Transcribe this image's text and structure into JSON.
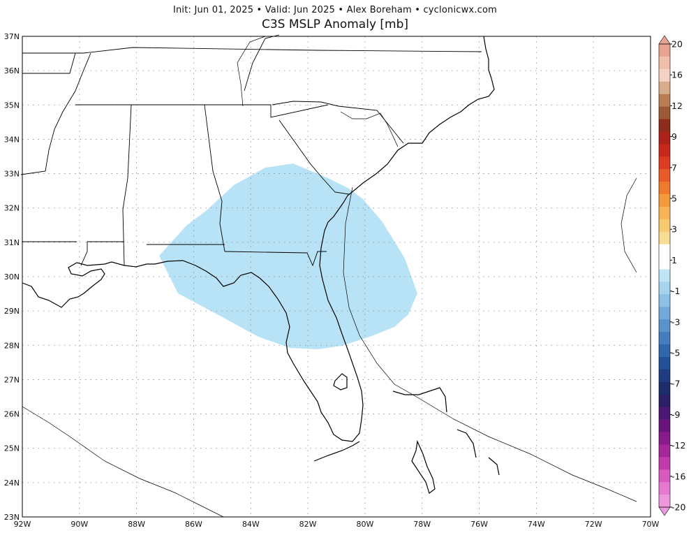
{
  "header": {
    "subtitle": "Init: Jun 01, 2025  •  Valid: Jun 2025  •  Alex Boreham  •  cyclonicwx.com",
    "title": "C3S MSLP Anomaly [mb]"
  },
  "map": {
    "lon_range": [
      -92,
      -70
    ],
    "lat_range": [
      23,
      37
    ],
    "lat_labels": [
      "37N",
      "36N",
      "35N",
      "34N",
      "33N",
      "32N",
      "31N",
      "30N",
      "29N",
      "28N",
      "27N",
      "26N",
      "25N",
      "24N",
      "23N"
    ],
    "lon_labels": [
      "92W",
      "90W",
      "88W",
      "86W",
      "84W",
      "82W",
      "80W",
      "78W",
      "76W",
      "74W",
      "72W",
      "70W"
    ],
    "anomaly_region": {
      "value_mb": -1,
      "color": "#b8e2f5"
    }
  },
  "colorbar": {
    "labels": [
      "20",
      "16",
      "12",
      "9",
      "7",
      "5",
      "3",
      "1",
      "-1",
      "-3",
      "-5",
      "-7",
      "-9",
      "-12",
      "-16",
      "-20"
    ],
    "colors": [
      "#e8a493",
      "#f1c0aa",
      "#f4d3c4",
      "#d8ad8c",
      "#b87d52",
      "#9b5a35",
      "#8c2d1b",
      "#ad2219",
      "#c8271c",
      "#dd3b22",
      "#e85a27",
      "#ef7a2e",
      "#f39a3a",
      "#f6b456",
      "#f8ca70",
      "#f7dc93",
      "#ffffff",
      "#ffffff",
      "#bfe4f5",
      "#a6d3ee",
      "#8dc0e4",
      "#73a9d8",
      "#5a93cb",
      "#437dbd",
      "#2f66ac",
      "#234f96",
      "#1f3d80",
      "#1e2d6b",
      "#2c1f65",
      "#4b1873",
      "#6a157d",
      "#891a8a",
      "#a52799",
      "#c23bab",
      "#d85abf",
      "#e57ad0",
      "#ed98dd"
    ]
  }
}
